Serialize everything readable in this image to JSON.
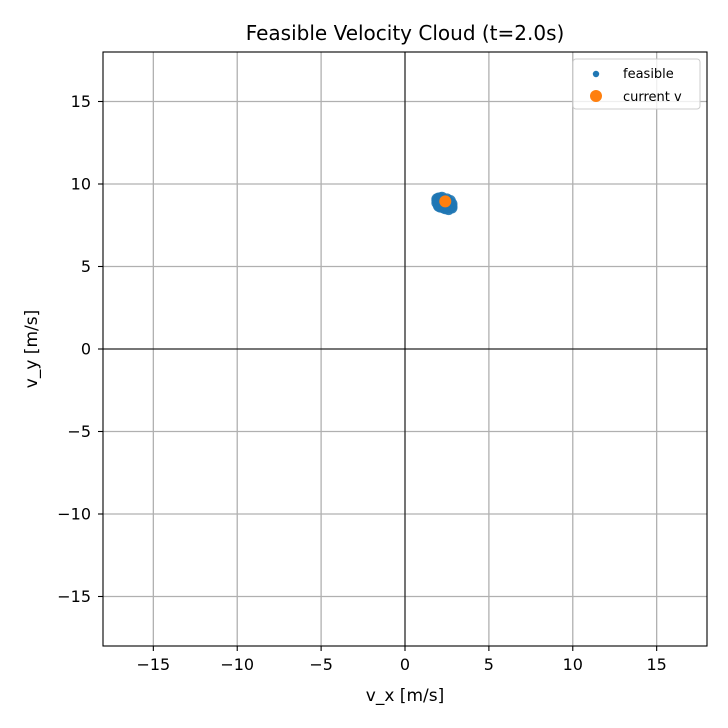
{
  "chart_data": {
    "type": "scatter",
    "title": "Feasible Velocity Cloud (t=2.0s)",
    "xlabel": "v_x [m/s]",
    "ylabel": "v_y [m/s]",
    "xlim": [
      -18,
      18
    ],
    "ylim": [
      -18,
      18
    ],
    "xticks": [
      -15,
      -10,
      -5,
      0,
      5,
      10,
      15
    ],
    "yticks": [
      -15,
      -10,
      -5,
      0,
      5,
      10,
      15
    ],
    "xtick_labels": [
      "−15",
      "−10",
      "−5",
      "0",
      "5",
      "10",
      "15"
    ],
    "ytick_labels": [
      "−15",
      "−10",
      "−5",
      "0",
      "5",
      "10",
      "15"
    ],
    "grid": true,
    "zero_lines": true,
    "legend_position": "top-right",
    "series": [
      {
        "name": "feasible",
        "marker": "small-dot",
        "color": "#1f77b4",
        "points": [
          [
            1.9,
            9.1
          ],
          [
            2.0,
            9.15
          ],
          [
            2.1,
            9.15
          ],
          [
            2.2,
            9.1
          ],
          [
            2.3,
            9.05
          ],
          [
            2.4,
            9.0
          ],
          [
            2.5,
            8.95
          ],
          [
            2.6,
            8.9
          ],
          [
            2.7,
            8.85
          ],
          [
            2.8,
            8.8
          ],
          [
            1.9,
            9.0
          ],
          [
            2.0,
            9.0
          ],
          [
            2.1,
            8.95
          ],
          [
            2.2,
            8.9
          ],
          [
            2.3,
            8.85
          ],
          [
            2.4,
            8.8
          ],
          [
            2.5,
            8.75
          ],
          [
            2.6,
            8.7
          ],
          [
            2.7,
            8.7
          ],
          [
            2.8,
            8.65
          ],
          [
            1.9,
            8.85
          ],
          [
            2.0,
            8.8
          ],
          [
            2.1,
            8.75
          ],
          [
            2.2,
            8.7
          ],
          [
            2.3,
            8.7
          ],
          [
            2.4,
            8.65
          ],
          [
            2.5,
            8.6
          ],
          [
            2.6,
            8.55
          ],
          [
            2.7,
            8.55
          ],
          [
            2.8,
            8.55
          ],
          [
            2.0,
            8.65
          ],
          [
            2.1,
            8.6
          ],
          [
            2.2,
            8.6
          ],
          [
            2.3,
            8.55
          ],
          [
            2.4,
            8.5
          ],
          [
            2.2,
            9.2
          ],
          [
            2.5,
            9.1
          ],
          [
            2.7,
            9.0
          ],
          [
            2.0,
            8.7
          ],
          [
            2.6,
            8.45
          ]
        ]
      },
      {
        "name": "current v",
        "marker": "dot",
        "color": "#ff7f0e",
        "points": [
          [
            2.4,
            8.95
          ]
        ]
      }
    ]
  }
}
